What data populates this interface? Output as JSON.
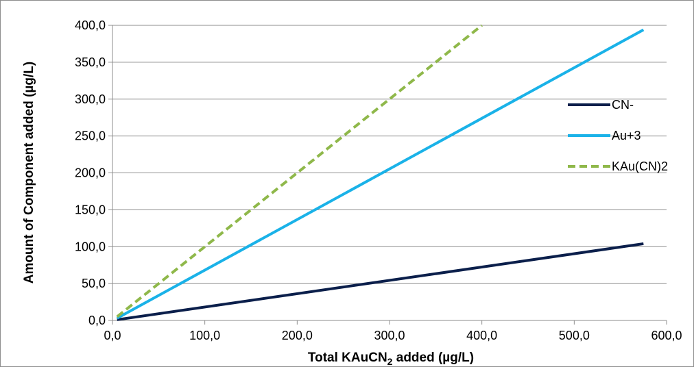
{
  "chart_data": {
    "type": "line",
    "title": "",
    "xlabel_main": "Total KAuCN",
    "xlabel_sub": "2",
    "xlabel_rest": " added (µg/L)",
    "ylabel": "Amount of Component added (µg/L)",
    "xlim": [
      0,
      600
    ],
    "ylim": [
      0,
      400
    ],
    "xticks": [
      0,
      100,
      200,
      300,
      400,
      500,
      600
    ],
    "yticks": [
      0,
      50,
      100,
      150,
      200,
      250,
      300,
      350,
      400
    ],
    "xtick_labels": [
      "0,0",
      "100,0",
      "200,0",
      "300,0",
      "400,0",
      "500,0",
      "600,0"
    ],
    "ytick_labels": [
      "0,0",
      "50,0",
      "100,0",
      "150,0",
      "200,0",
      "250,0",
      "300,0",
      "350,0",
      "400,0"
    ],
    "grid": "horizontal",
    "legend_position": "right",
    "series": [
      {
        "name": "CN-",
        "color": "#0b1f4b",
        "dash": "solid",
        "points": [
          [
            5,
            1
          ],
          [
            575,
            104
          ]
        ]
      },
      {
        "name": "Au+3",
        "color": "#1ab2e8",
        "dash": "solid",
        "points": [
          [
            5,
            3
          ],
          [
            575,
            394
          ]
        ]
      },
      {
        "name": "KAu(CN)2",
        "color": "#8fb84a",
        "dash": "dashed",
        "points": [
          [
            5,
            5
          ],
          [
            400,
            400
          ]
        ]
      }
    ]
  }
}
